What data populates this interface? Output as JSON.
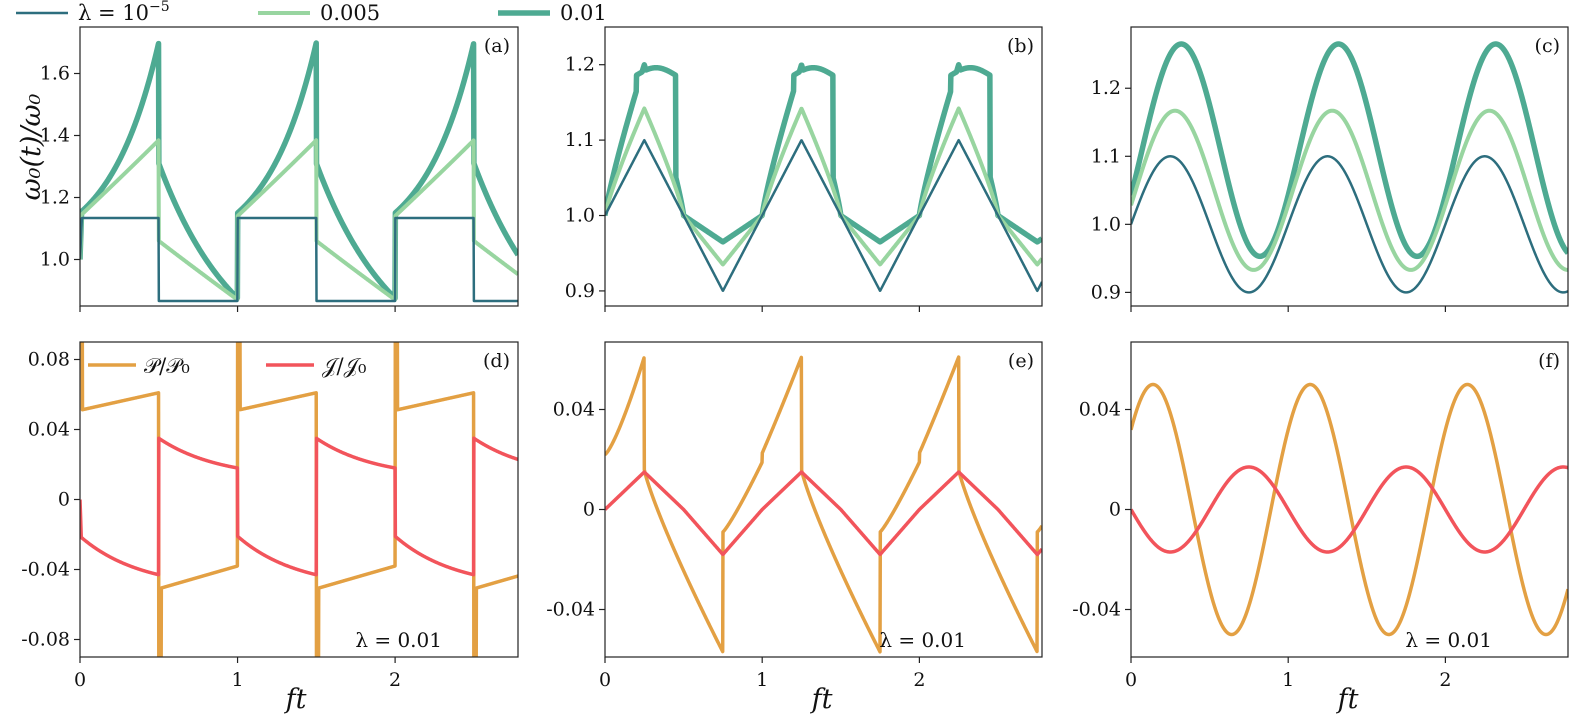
{
  "colors": {
    "lambda_1e-5": "#2d6e7e",
    "lambda_0.005": "#98d5a0",
    "lambda_0.01": "#4eaa92",
    "power": "#e3a043",
    "current": "#f2545b",
    "axis": "#222222"
  },
  "legend_top": [
    {
      "label_prefix": "λ = 10",
      "label_sup": "−5",
      "color_key": "lambda_1e-5"
    },
    {
      "label": "0.005",
      "color_key": "lambda_0.005"
    },
    {
      "label": "0.01",
      "color_key": "lambda_0.01"
    }
  ],
  "legend_bottom": [
    {
      "label": "𝒫/𝒫₀",
      "color_key": "power"
    },
    {
      "label": "𝒥/𝒥₀",
      "color_key": "current"
    }
  ],
  "y_axis_title_top": "ω₀(t)/ω₀",
  "x_axis_title": "ft",
  "lambda_note": "λ = 0.01",
  "chart_data": [
    {
      "panel": "(a)",
      "type": "line",
      "waveform": "square",
      "xlim": [
        0,
        2.78
      ],
      "ylim": [
        0.85,
        1.75
      ],
      "yticks": [
        1.0,
        1.2,
        1.4,
        1.6
      ],
      "ytick_labels": [
        "1.0",
        "1.2",
        "1.4",
        "1.6"
      ],
      "xticks": [
        0,
        1,
        2
      ],
      "xtick_labels": [],
      "series": [
        {
          "color_key": "lambda_1e-5",
          "lambda": 1e-05,
          "high": 1.134,
          "low": 0.866
        },
        {
          "color_key": "lambda_0.005",
          "lambda": 0.005,
          "start": 1.14,
          "peak": 1.385,
          "after_drop": 1.06,
          "trough": 0.87
        },
        {
          "color_key": "lambda_0.01",
          "lambda": 0.01,
          "start": 1.15,
          "peak": 1.7,
          "after_drop": 1.31,
          "trough": 0.875
        }
      ]
    },
    {
      "panel": "(b)",
      "type": "line",
      "waveform": "triangle",
      "xlim": [
        0,
        2.78
      ],
      "ylim": [
        0.88,
        1.25
      ],
      "yticks": [
        0.9,
        1.0,
        1.1,
        1.2
      ],
      "ytick_labels": [
        "0.9",
        "1.0",
        "1.1",
        "1.2"
      ],
      "xticks": [
        0,
        1,
        2
      ],
      "xtick_labels": [],
      "series": [
        {
          "color_key": "lambda_1e-5",
          "lambda": 1e-05,
          "start": 1.0,
          "max": 1.1,
          "min": 0.9
        },
        {
          "color_key": "lambda_0.005",
          "lambda": 0.005,
          "start": 1.0,
          "max": 1.142,
          "min": 0.935
        },
        {
          "color_key": "lambda_0.01",
          "lambda": 0.01,
          "start": 1.0,
          "max": 1.2,
          "min": 0.965
        }
      ]
    },
    {
      "panel": "(c)",
      "type": "line",
      "waveform": "sine",
      "xlim": [
        0,
        2.78
      ],
      "ylim": [
        0.88,
        1.29
      ],
      "yticks": [
        0.9,
        1.0,
        1.1,
        1.2
      ],
      "ytick_labels": [
        "0.9",
        "1.0",
        "1.1",
        "1.2"
      ],
      "xticks": [
        0,
        1,
        2
      ],
      "xtick_labels": [],
      "series": [
        {
          "color_key": "lambda_1e-5",
          "lambda": 1e-05,
          "start": 1.0,
          "max": 1.1,
          "min": 0.9
        },
        {
          "color_key": "lambda_0.005",
          "lambda": 0.005,
          "start": 1.0,
          "max": 1.168,
          "min": 0.935
        },
        {
          "color_key": "lambda_0.01",
          "lambda": 0.01,
          "start": 1.0,
          "max": 1.265,
          "min": 0.953
        }
      ]
    },
    {
      "panel": "(d)",
      "type": "line",
      "waveform": "square",
      "xlim": [
        0,
        2.78
      ],
      "ylim": [
        -0.09,
        0.09
      ],
      "yticks": [
        -0.08,
        -0.04,
        0,
        0.04,
        0.08
      ],
      "ytick_labels": [
        "-0.08",
        "-0.04",
        "0",
        "0.04",
        "0.08"
      ],
      "xticks": [
        0,
        1,
        2
      ],
      "xtick_labels": [
        "0",
        "1",
        "2"
      ],
      "series": [
        {
          "color_key": "power",
          "quantity": "P/P0",
          "plateau_start": 0.051,
          "plateau_end": 0.061,
          "spike": 0.12
        },
        {
          "color_key": "current",
          "quantity": "J/J0",
          "after_switch": 0.035,
          "before_switch": 0.018
        }
      ]
    },
    {
      "panel": "(e)",
      "type": "line",
      "waveform": "triangle",
      "xlim": [
        0,
        2.78
      ],
      "ylim": [
        -0.059,
        0.067
      ],
      "yticks": [
        -0.04,
        0,
        0.04
      ],
      "ytick_labels": [
        "-0.04",
        "0",
        "0.04"
      ],
      "xticks": [
        0,
        1,
        2
      ],
      "xtick_labels": [
        "0",
        "1",
        "2"
      ],
      "series": [
        {
          "color_key": "power",
          "quantity": "P/P0",
          "start": 0.022,
          "peak": 0.061,
          "after_drop": 0.016,
          "min": -0.057,
          "after_rise": -0.009
        },
        {
          "color_key": "current",
          "quantity": "J/J0",
          "max": 0.015,
          "min": -0.018
        }
      ]
    },
    {
      "panel": "(f)",
      "type": "line",
      "waveform": "sine",
      "xlim": [
        0,
        2.78
      ],
      "ylim": [
        -0.059,
        0.067
      ],
      "yticks": [
        -0.04,
        0,
        0.04
      ],
      "ytick_labels": [
        "-0.04",
        "0",
        "0.04"
      ],
      "xticks": [
        0,
        1,
        2
      ],
      "xtick_labels": [
        "0",
        "1",
        "2"
      ],
      "series": [
        {
          "color_key": "power",
          "quantity": "P/P0",
          "amplitude": 0.05,
          "phase_peak": 0.14
        },
        {
          "color_key": "current",
          "quantity": "J/J0",
          "amplitude": 0.018,
          "max_at": 0.72,
          "min_at": 0.25
        }
      ]
    }
  ]
}
